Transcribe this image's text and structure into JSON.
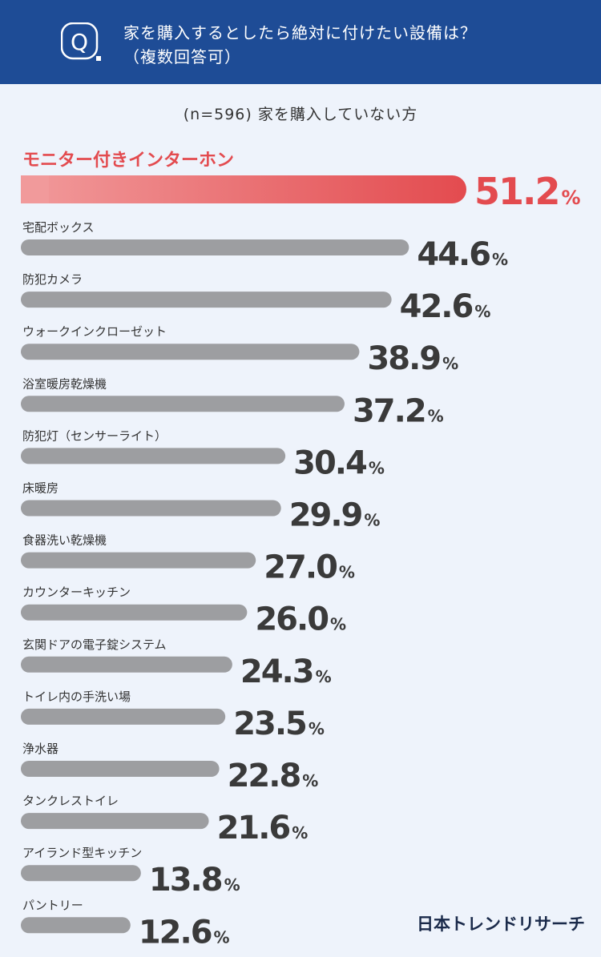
{
  "header": {
    "question_line1": "家を購入するとしたら絶対に付けたい設備は？",
    "question_line2": "（複数回答可）"
  },
  "subtitle": "(n=596) 家を購入していない方",
  "brand": "日本トレンドリサーチ",
  "colors": {
    "header_bg": "#1e4c96",
    "highlight": "#e34b4f",
    "highlight_light": "#f19a9b",
    "bar": "#9d9ea1",
    "value_text": "#3a3a3a"
  },
  "chart_data": {
    "type": "bar",
    "orientation": "horizontal",
    "unit": "%",
    "categories": [
      "モニター付きインターホン",
      "宅配ボックス",
      "防犯カメラ",
      "ウォークインクローゼット",
      "浴室暖房乾燥機",
      "防犯灯（センサーライト）",
      "床暖房",
      "食器洗い乾燥機",
      "カウンターキッチン",
      "玄関ドアの電子錠システム",
      "トイレ内の手洗い場",
      "浄水器",
      "タンクレストイレ",
      "アイランド型キッチン",
      "パントリー"
    ],
    "values": [
      51.2,
      44.6,
      42.6,
      38.9,
      37.2,
      30.4,
      29.9,
      27.0,
      26.0,
      24.3,
      23.5,
      22.8,
      21.6,
      13.8,
      12.6
    ],
    "value_labels": [
      "51.2",
      "44.6",
      "42.6",
      "38.9",
      "37.2",
      "30.4",
      "29.9",
      "27.0",
      "26.0",
      "24.3",
      "23.5",
      "22.8",
      "21.6",
      "13.8",
      "12.6"
    ],
    "highlight_index": 0
  }
}
